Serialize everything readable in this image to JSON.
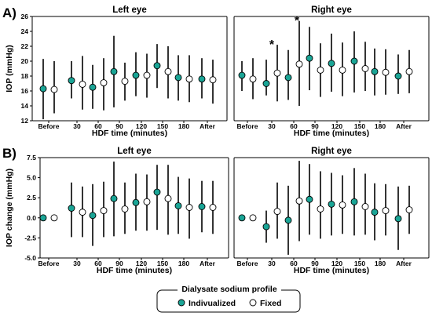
{
  "figure": {
    "panel_labels": [
      "A)",
      "B)"
    ],
    "legend": {
      "title": "Dialysate sodium profile",
      "items": [
        {
          "label": "Indivualized",
          "color": "#1aa596"
        },
        {
          "label": "Fixed",
          "color": "#ffffff"
        }
      ]
    },
    "colors": {
      "individualized": "#1aa596",
      "fixed": "#ffffff",
      "stroke": "#000000"
    }
  },
  "chart_data": [
    {
      "type": "scatter",
      "title": "Left eye",
      "xlabel": "HDF time (minutes)",
      "ylabel": "IOP (mmHg)",
      "categories": [
        "Before",
        "30",
        "60",
        "90",
        "120",
        "150",
        "180",
        "After"
      ],
      "ylim": [
        12,
        26
      ],
      "yticks": [
        "12",
        "14",
        "16",
        "18",
        "20",
        "22",
        "24",
        "26"
      ],
      "grid": false,
      "series": [
        {
          "name": "Indivualized",
          "values": [
            16.3,
            17.4,
            16.5,
            18.6,
            18.1,
            19.4,
            17.8,
            17.6
          ],
          "lower": [
            12.2,
            15.0,
            13.6,
            13.8,
            15.3,
            16.4,
            14.7,
            15.0
          ],
          "upper": [
            20.3,
            20.0,
            19.5,
            23.4,
            21.2,
            22.3,
            20.8,
            20.4
          ]
        },
        {
          "name": "Fixed",
          "values": [
            16.2,
            16.9,
            17.1,
            17.3,
            18.1,
            18.6,
            17.6,
            17.5
          ],
          "lower": [
            13.0,
            13.5,
            13.4,
            14.7,
            15.1,
            15.0,
            14.5,
            14.3
          ],
          "upper": [
            20.0,
            20.7,
            20.4,
            19.8,
            21.0,
            22.0,
            20.8,
            20.2
          ]
        }
      ],
      "annotations": []
    },
    {
      "type": "scatter",
      "title": "Right eye",
      "xlabel": "HDF time (minutes)",
      "ylabel": "",
      "categories": [
        "Before",
        "30",
        "60",
        "90",
        "120",
        "150",
        "180",
        "After"
      ],
      "ylim": [
        12,
        26
      ],
      "yticks": [],
      "grid": false,
      "series": [
        {
          "name": "Indivualized",
          "values": [
            18.1,
            17.0,
            17.8,
            20.4,
            19.7,
            20.0,
            18.6,
            18.0
          ],
          "lower": [
            16.0,
            15.4,
            14.8,
            16.1,
            15.9,
            15.8,
            15.4,
            15.6
          ],
          "upper": [
            20.0,
            20.2,
            21.5,
            24.6,
            23.7,
            24.0,
            21.7,
            20.9
          ]
        },
        {
          "name": "Fixed",
          "values": [
            17.6,
            18.4,
            19.6,
            18.8,
            18.8,
            19.0,
            18.5,
            18.6
          ],
          "lower": [
            14.9,
            14.6,
            14.0,
            15.2,
            15.3,
            16.0,
            15.5,
            15.7
          ],
          "upper": [
            20.4,
            22.2,
            25.4,
            22.4,
            22.5,
            22.6,
            21.6,
            21.5
          ]
        }
      ],
      "annotations": [
        {
          "text": "*",
          "category": "30"
        },
        {
          "text": "*",
          "category": "60"
        }
      ]
    },
    {
      "type": "scatter",
      "title": "Left eye",
      "xlabel": "HDF time (minutes)",
      "ylabel": "IOP change (mmHg)",
      "categories": [
        "Before",
        "30",
        "60",
        "90",
        "120",
        "150",
        "180",
        "After"
      ],
      "ylim": [
        -5,
        7.5
      ],
      "yticks": [
        "-5.0",
        "-2.5",
        "0.0",
        "2.5",
        "5.0",
        "7.5"
      ],
      "grid": false,
      "series": [
        {
          "name": "Indivualized",
          "values": [
            0.0,
            1.2,
            0.3,
            2.4,
            1.9,
            3.2,
            1.5,
            1.4
          ],
          "lower": [
            0.0,
            -2.4,
            -3.5,
            -2.3,
            -1.6,
            -1.5,
            -2.0,
            -1.8
          ],
          "upper": [
            0.0,
            4.4,
            4.2,
            7.0,
            5.5,
            6.6,
            5.1,
            4.6
          ]
        },
        {
          "name": "Fixed",
          "values": [
            0.0,
            0.7,
            0.9,
            1.1,
            2.0,
            2.4,
            1.3,
            1.3
          ],
          "lower": [
            0.0,
            -2.4,
            -2.4,
            -2.0,
            -1.6,
            -2.1,
            -2.6,
            -2.0
          ],
          "upper": [
            0.0,
            3.9,
            4.5,
            4.4,
            5.4,
            6.6,
            4.9,
            4.6
          ]
        }
      ],
      "annotations": []
    },
    {
      "type": "scatter",
      "title": "Right eye",
      "xlabel": "HDF time (minutes)",
      "ylabel": "",
      "categories": [
        "Before",
        "30",
        "60",
        "90",
        "120",
        "150",
        "180",
        "After"
      ],
      "ylim": [
        -5,
        7.5
      ],
      "yticks": [],
      "grid": false,
      "series": [
        {
          "name": "Indivualized",
          "values": [
            0.0,
            -1.1,
            -0.3,
            2.3,
            1.7,
            2.0,
            0.7,
            -0.1
          ],
          "lower": [
            0.0,
            -3.1,
            -4.6,
            -2.1,
            -2.2,
            -2.2,
            -2.8,
            -4.0
          ],
          "upper": [
            0.0,
            0.9,
            4.0,
            6.7,
            5.6,
            6.2,
            4.3,
            3.9
          ]
        },
        {
          "name": "Fixed",
          "values": [
            0.0,
            0.8,
            2.1,
            1.1,
            1.6,
            1.4,
            0.9,
            1.0
          ],
          "lower": [
            0.0,
            -2.6,
            -2.9,
            -2.6,
            -2.0,
            -2.1,
            -2.2,
            -2.0
          ],
          "upper": [
            0.0,
            4.4,
            7.1,
            5.8,
            5.3,
            5.5,
            4.2,
            4.0
          ]
        }
      ],
      "annotations": []
    }
  ]
}
